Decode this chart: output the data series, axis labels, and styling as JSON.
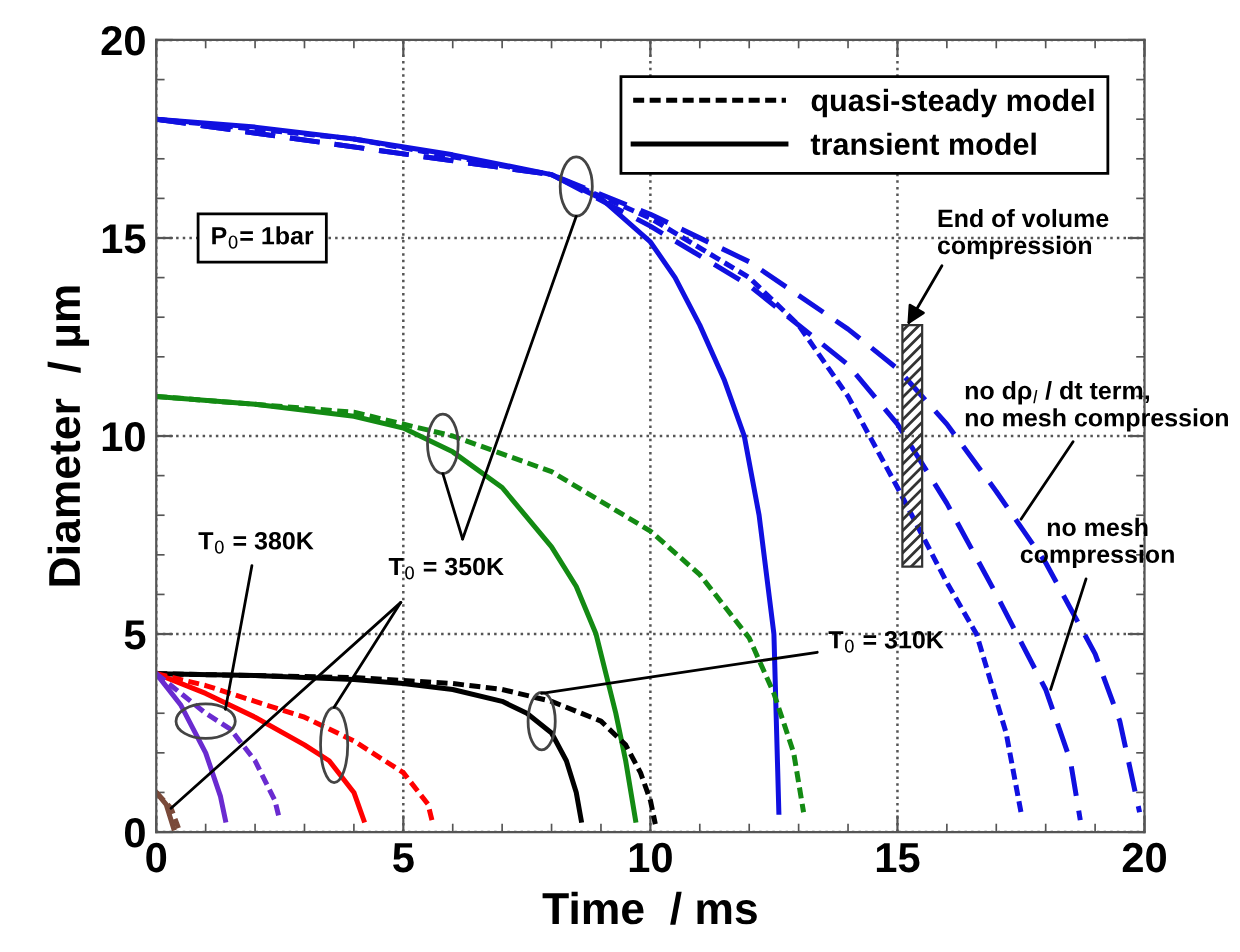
{
  "chart_data": {
    "type": "line",
    "xlabel": "Time  / ms",
    "ylabel": "Diameter  / µm",
    "xlim": [
      0,
      20
    ],
    "ylim": [
      0,
      20
    ],
    "xticks": [
      0,
      5,
      10,
      15,
      20
    ],
    "yticks": [
      0,
      5,
      10,
      15,
      20
    ],
    "grid": true,
    "legend": "top right",
    "series": [
      {
        "color": "#1010e0",
        "line_style": "solid",
        "x": [
          0,
          2,
          4,
          6,
          8,
          9,
          10,
          10.5,
          11,
          11.5,
          11.9,
          12.2,
          12.5,
          12.6
        ],
        "values": [
          18,
          17.8,
          17.5,
          17.1,
          16.6,
          16.0,
          14.9,
          14.0,
          12.8,
          11.4,
          10,
          8,
          5,
          0.5
        ]
      },
      {
        "color": "#1010e0",
        "line_style": "dotted",
        "x": [
          0,
          4,
          8,
          10,
          12,
          13,
          14,
          15,
          16,
          16.6,
          17.2,
          17.5
        ],
        "values": [
          18,
          17.5,
          16.6,
          15.5,
          14,
          12.8,
          11,
          8.7,
          6.3,
          5,
          2.5,
          0.5
        ]
      },
      {
        "color": "#1010e0",
        "line_style": "dashed",
        "x": [
          0,
          8,
          10,
          12,
          14,
          15,
          16,
          17,
          18,
          18.5,
          18.7
        ],
        "values": [
          18,
          16.6,
          15.3,
          13.8,
          11.8,
          10.3,
          8.3,
          6.0,
          3.6,
          1.8,
          0.3
        ]
      },
      {
        "color": "#1010e0",
        "line_style": "dashed",
        "x": [
          0,
          8,
          10,
          12,
          14,
          15,
          16,
          17,
          18,
          19,
          19.5,
          19.9
        ],
        "values": [
          18,
          16.6,
          15.6,
          14.4,
          12.7,
          11.7,
          10.3,
          8.6,
          6.8,
          4.5,
          2.8,
          0.5
        ]
      },
      {
        "color": "#138a13",
        "line_style": "solid",
        "x": [
          0,
          2,
          4,
          5,
          6,
          7,
          8,
          8.5,
          8.9,
          9.3,
          9.5,
          9.7
        ],
        "values": [
          11,
          10.8,
          10.5,
          10.2,
          9.6,
          8.7,
          7.2,
          6.2,
          5,
          3,
          1.8,
          0.3
        ]
      },
      {
        "color": "#138a13",
        "line_style": "dotted",
        "x": [
          0,
          4,
          6,
          8,
          10,
          11,
          12,
          12.5,
          12.9,
          13.1
        ],
        "values": [
          11,
          10.6,
          10,
          9.1,
          7.6,
          6.5,
          4.9,
          3.5,
          2,
          0.5
        ]
      },
      {
        "name": "quasi-steady model",
        "color": "#000000",
        "line_style": "dotted",
        "x": [
          0,
          4,
          6,
          7,
          8,
          9,
          9.5,
          9.8,
          10,
          10.1
        ],
        "values": [
          4,
          3.9,
          3.75,
          3.6,
          3.3,
          2.8,
          2.2,
          1.5,
          0.8,
          0.2
        ]
      },
      {
        "name": "transient model",
        "color": "#000000",
        "line_style": "solid",
        "x": [
          0,
          2,
          4,
          5,
          6,
          7,
          7.5,
          8,
          8.3,
          8.5,
          8.6
        ],
        "values": [
          4,
          3.95,
          3.85,
          3.75,
          3.6,
          3.3,
          3.0,
          2.5,
          1.8,
          1.0,
          0.3
        ]
      },
      {
        "color": "#ff0000",
        "line_style": "solid",
        "x": [
          0,
          1,
          2,
          3,
          3.5,
          4,
          4.2
        ],
        "values": [
          4,
          3.5,
          2.9,
          2.2,
          1.8,
          1.0,
          0.3
        ]
      },
      {
        "color": "#ff0000",
        "line_style": "dotted",
        "x": [
          0,
          1,
          2,
          3,
          4,
          5,
          5.5,
          5.6
        ],
        "values": [
          4,
          3.7,
          3.3,
          2.9,
          2.3,
          1.5,
          0.7,
          0.2
        ]
      },
      {
        "color": "#6a2bd0",
        "line_style": "solid",
        "x": [
          0,
          0.5,
          1,
          1.3,
          1.4
        ],
        "values": [
          4,
          3.2,
          2.0,
          0.9,
          0.3
        ]
      },
      {
        "color": "#6a2bd0",
        "line_style": "dotted",
        "x": [
          0,
          1,
          1.5,
          2,
          2.4,
          2.5
        ],
        "values": [
          4,
          3.0,
          2.6,
          1.8,
          0.8,
          0.3
        ]
      },
      {
        "color": "#7a4a3a",
        "line_style": "solid",
        "x": [
          0,
          0.2,
          0.35
        ],
        "values": [
          1,
          0.7,
          0.1
        ]
      },
      {
        "color": "#7a4a3a",
        "line_style": "dotted",
        "x": [
          0,
          0.3,
          0.45
        ],
        "values": [
          1,
          0.6,
          0.1
        ]
      }
    ],
    "annotations": [
      "P$_{0}$= 1bar",
      "End of volume\ncompression",
      {
        "text": "no dρ$_{l}$ / dt term,\nno mesh compression",
        "x": 17.5,
        "y": 7.9
      },
      {
        "text": "no mesh\ncompression",
        "x": 18.1,
        "y": 3.6
      },
      {
        "text": "T$_{0}$ = 310K",
        "x": 7.8,
        "y": 3.5
      },
      {
        "text": "T$_{0}$ = 350K",
        "x": 0.3,
        "y": 0.6
      },
      {
        "text": "T$_{0}$ = 380K",
        "x": 1.4,
        "y": 3.1
      }
    ]
  }
}
